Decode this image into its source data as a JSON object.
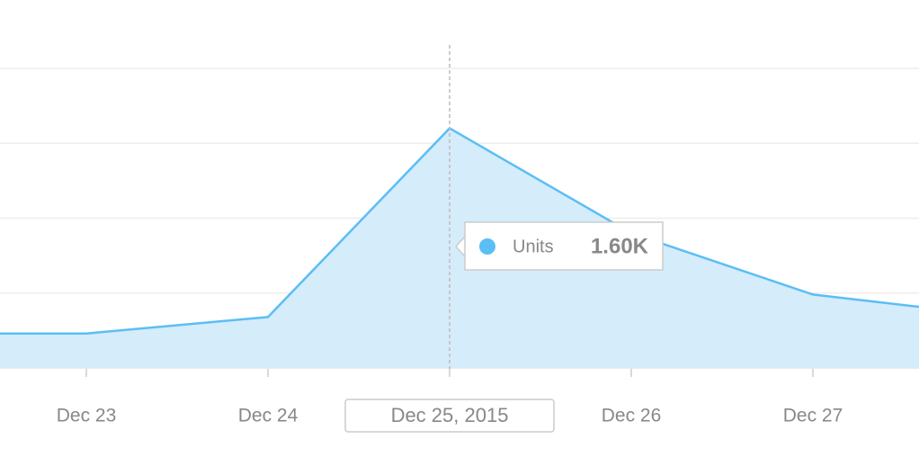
{
  "chart_data": {
    "type": "area",
    "categories": [
      null,
      "Dec 23",
      "Dec 24",
      "Dec 25, 2015",
      "Dec 26",
      "Dec 27",
      null
    ],
    "series": [
      {
        "name": "Units",
        "color": "#5bbef5",
        "fill": "#d5ecfb",
        "values": [
          230,
          230,
          340,
          1600,
          900,
          490,
          350
        ],
        "value_labels": [
          null,
          null,
          null,
          "1.60K",
          null,
          null,
          null
        ]
      }
    ],
    "ylim": [
      0,
      2000
    ],
    "yticks": [
      0,
      500,
      1000,
      1500,
      2000
    ],
    "grid": true
  }
}
